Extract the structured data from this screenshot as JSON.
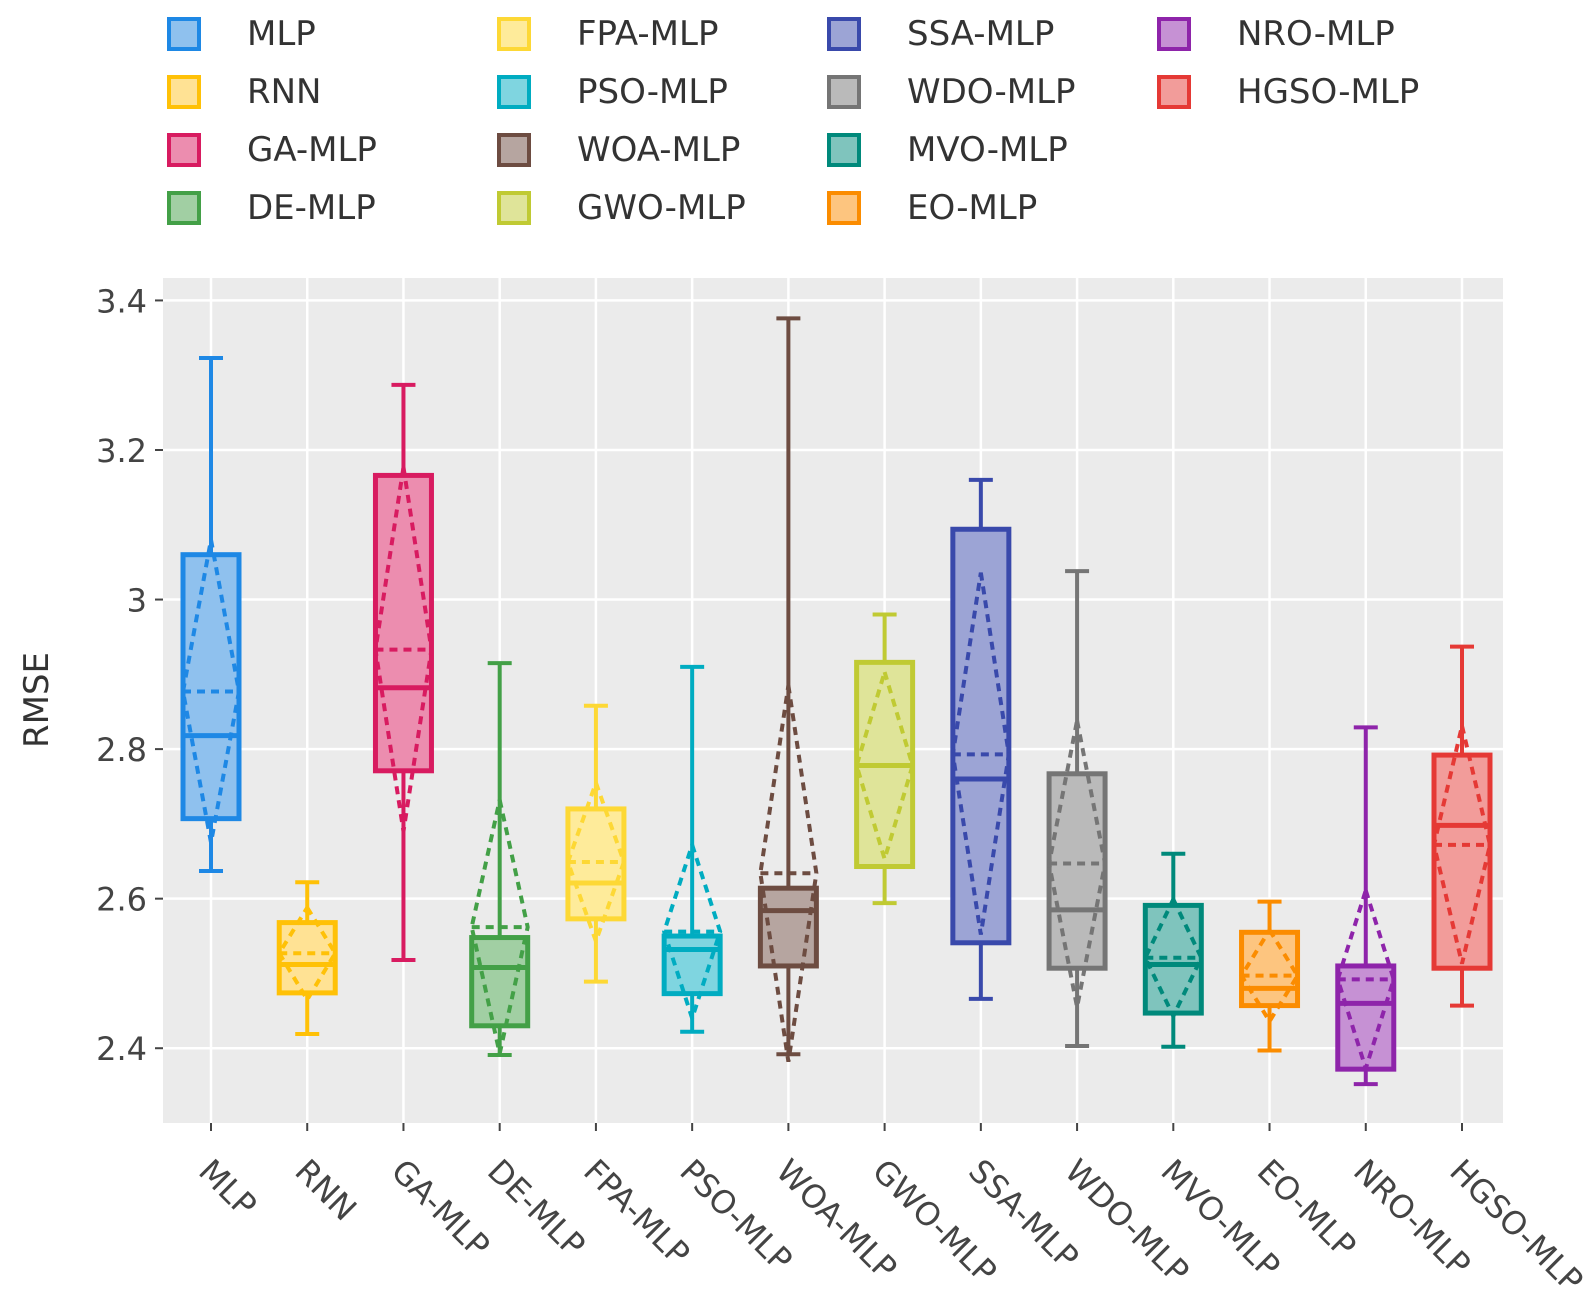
{
  "chart_data": {
    "type": "box",
    "title": "",
    "xlabel": "",
    "ylabel": "RMSE",
    "ylim": [
      2.3,
      3.43
    ],
    "yticks": [
      2.4,
      2.6,
      2.8,
      3.0,
      3.2,
      3.4
    ],
    "ytick_labels": [
      "2.4",
      "2.6",
      "2.8",
      "3",
      "3.2",
      "3.4"
    ],
    "grid": true,
    "legend_position": "top",
    "categories": [
      "MLP",
      "RNN",
      "GA-MLP",
      "DE-MLP",
      "FPA-MLP",
      "PSO-MLP",
      "WOA-MLP",
      "GWO-MLP",
      "SSA-MLP",
      "WDO-MLP",
      "MVO-MLP",
      "EO-MLP",
      "NRO-MLP",
      "HGSO-MLP"
    ],
    "series": [
      {
        "name": "MLP",
        "color": "#1e88e5",
        "fill": "#8fc1ee",
        "min": 2.637,
        "q1": 2.707,
        "median": 2.818,
        "q3": 3.06,
        "max": 3.323,
        "mean": 2.877,
        "mean_low": 2.675,
        "mean_high": 3.08
      },
      {
        "name": "RNN",
        "color": "#ffc107",
        "fill": "#ffe294",
        "min": 2.419,
        "q1": 2.474,
        "median": 2.512,
        "q3": 2.568,
        "max": 2.622,
        "mean": 2.527,
        "mean_low": 2.465,
        "mean_high": 2.588
      },
      {
        "name": "GA-MLP",
        "color": "#d81b60",
        "fill": "#ec8daf",
        "min": 2.518,
        "q1": 2.771,
        "median": 2.882,
        "q3": 3.166,
        "max": 3.287,
        "mean": 2.933,
        "mean_low": 2.69,
        "mean_high": 3.177
      },
      {
        "name": "DE-MLP",
        "color": "#43a047",
        "fill": "#a1cfa3",
        "min": 2.391,
        "q1": 2.43,
        "median": 2.508,
        "q3": 2.548,
        "max": 2.915,
        "mean": 2.562,
        "mean_low": 2.393,
        "mean_high": 2.732
      },
      {
        "name": "FPA-MLP",
        "color": "#fdd835",
        "fill": "#feeb9a",
        "min": 2.489,
        "q1": 2.573,
        "median": 2.621,
        "q3": 2.72,
        "max": 2.858,
        "mean": 2.649,
        "mean_low": 2.543,
        "mean_high": 2.755
      },
      {
        "name": "PSO-MLP",
        "color": "#00acc1",
        "fill": "#7fd5e0",
        "min": 2.422,
        "q1": 2.473,
        "median": 2.532,
        "q3": 2.55,
        "max": 2.91,
        "mean": 2.556,
        "mean_low": 2.44,
        "mean_high": 2.672
      },
      {
        "name": "WOA-MLP",
        "color": "#6d4c41",
        "fill": "#b6a5a0",
        "min": 2.392,
        "q1": 2.51,
        "median": 2.584,
        "q3": 2.614,
        "max": 3.376,
        "mean": 2.634,
        "mean_low": 2.382,
        "mean_high": 2.885
      },
      {
        "name": "GWO-MLP",
        "color": "#c0ca33",
        "fill": "#dfe499",
        "min": 2.594,
        "q1": 2.643,
        "median": 2.778,
        "q3": 2.916,
        "max": 2.98,
        "mean": 2.778,
        "mean_low": 2.653,
        "mean_high": 2.903
      },
      {
        "name": "SSA-MLP",
        "color": "#3949ab",
        "fill": "#9ca4d5",
        "min": 2.466,
        "q1": 2.541,
        "median": 2.76,
        "q3": 3.094,
        "max": 3.16,
        "mean": 2.793,
        "mean_low": 2.552,
        "mean_high": 3.036
      },
      {
        "name": "WDO-MLP",
        "color": "#757575",
        "fill": "#bababa",
        "min": 2.403,
        "q1": 2.507,
        "median": 2.585,
        "q3": 2.767,
        "max": 3.038,
        "mean": 2.647,
        "mean_low": 2.455,
        "mean_high": 2.838
      },
      {
        "name": "MVO-MLP",
        "color": "#00897b",
        "fill": "#7fc4bd",
        "min": 2.402,
        "q1": 2.447,
        "median": 2.512,
        "q3": 2.591,
        "max": 2.66,
        "mean": 2.521,
        "mean_low": 2.443,
        "mean_high": 2.599
      },
      {
        "name": "EO-MLP",
        "color": "#fb8c00",
        "fill": "#fdc57f",
        "min": 2.397,
        "q1": 2.457,
        "median": 2.48,
        "q3": 2.555,
        "max": 2.596,
        "mean": 2.497,
        "mean_low": 2.436,
        "mean_high": 2.558
      },
      {
        "name": "NRO-MLP",
        "color": "#8e24aa",
        "fill": "#c691d4",
        "min": 2.352,
        "q1": 2.372,
        "median": 2.46,
        "q3": 2.51,
        "max": 2.829,
        "mean": 2.492,
        "mean_low": 2.373,
        "mean_high": 2.611
      },
      {
        "name": "HGSO-MLP",
        "color": "#e53935",
        "fill": "#f29c9a",
        "min": 2.457,
        "q1": 2.507,
        "median": 2.698,
        "q3": 2.792,
        "max": 2.937,
        "mean": 2.672,
        "mean_low": 2.513,
        "mean_high": 2.831
      }
    ]
  },
  "legend": {
    "items": [
      "MLP",
      "RNN",
      "GA-MLP",
      "DE-MLP",
      "FPA-MLP",
      "PSO-MLP",
      "WOA-MLP",
      "GWO-MLP",
      "SSA-MLP",
      "WDO-MLP",
      "MVO-MLP",
      "EO-MLP",
      "NRO-MLP",
      "HGSO-MLP"
    ]
  }
}
